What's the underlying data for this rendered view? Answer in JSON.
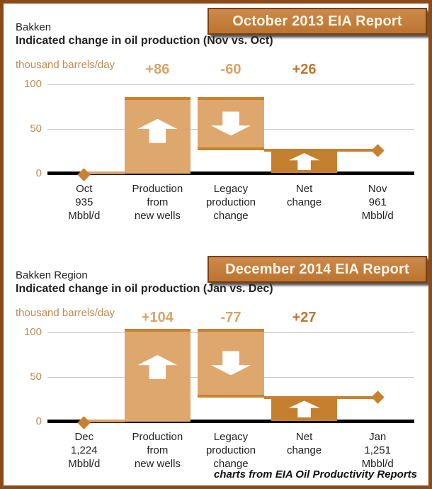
{
  "colors": {
    "frame_border": "#8B4A17",
    "banner_bg_top": "#CD8A4C",
    "banner_bg_bottom": "#BC7430",
    "banner_border": "#79400F",
    "banner_text": "#FBF5E8",
    "bar_light": "#DEA76D",
    "bar_edge": "#C8812F",
    "bar_net": "#C4802E",
    "conn_light": "#D9A263",
    "value_light": "#D9A368",
    "value_net": "#C0762E",
    "axis_label": "#C08A55"
  },
  "footer": {
    "text": "charts from EIA Oil Productivity Reports"
  },
  "chart_data": [
    {
      "type": "bar",
      "subtype": "waterfall",
      "banner": "October 2013 EIA Report",
      "title": "Bakken",
      "subtitle": "Indicated change in oil production (Nov vs. Oct)",
      "ylabel": "thousand barrels/day",
      "yticks": [
        100,
        50,
        0
      ],
      "ylim": [
        0,
        110
      ],
      "grid": true,
      "legend": "none",
      "start": {
        "label": "Oct\n935\nMbbl/d",
        "value": 0
      },
      "steps": [
        {
          "label": "Production\nfrom\nnew wells",
          "change": 86,
          "display": "+86",
          "net": false
        },
        {
          "label": "Legacy\nproduction\nchange",
          "change": -60,
          "display": "-60",
          "net": false
        },
        {
          "label": "Net\nchange",
          "change": 26,
          "display": "+26",
          "net": true
        }
      ],
      "end": {
        "label": "Nov\n961\nMbbl/d",
        "value": 26
      }
    },
    {
      "type": "bar",
      "subtype": "waterfall",
      "banner": "December 2014 EIA Report",
      "title": "Bakken Region",
      "subtitle": "Indicated change in oil production (Jan vs. Dec)",
      "ylabel": "thousand barrels/day",
      "yticks": [
        100,
        50,
        0
      ],
      "ylim": [
        0,
        110
      ],
      "grid": true,
      "legend": "none",
      "start": {
        "label": "Dec\n1,224\nMbbl/d",
        "value": 0
      },
      "steps": [
        {
          "label": "Production\nfrom\nnew wells",
          "change": 104,
          "display": "+104",
          "net": false
        },
        {
          "label": "Legacy\nproduction\nchange",
          "change": -77,
          "display": "-77",
          "net": false
        },
        {
          "label": "Net\nchange",
          "change": 27,
          "display": "+27",
          "net": true
        }
      ],
      "end": {
        "label": "Jan\n1,251\nMbbl/d",
        "value": 27
      }
    }
  ]
}
